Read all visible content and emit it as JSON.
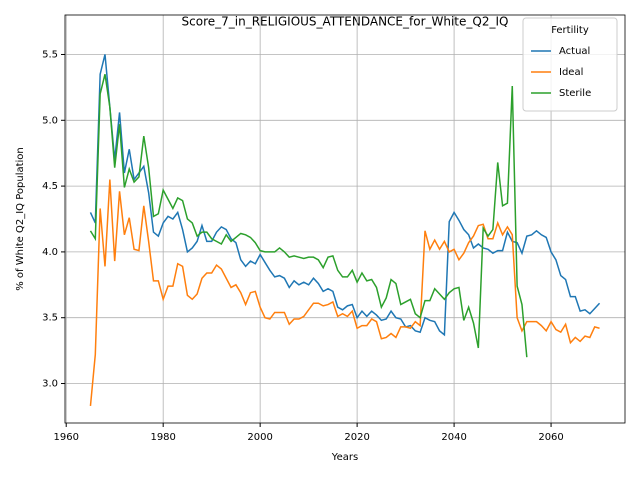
{
  "chart_data": {
    "type": "line",
    "title": "Score_7_in_RELIGIOUS_ATTENDANCE_for_White_Q2_IQ",
    "xlabel": "Years",
    "ylabel": "% of White Q2_IQ Population",
    "legend_title": "Fertility",
    "legend": "upper right",
    "grid": true,
    "x": [
      1965,
      1966,
      1967,
      1968,
      1969,
      1970,
      1971,
      1972,
      1973,
      1974,
      1975,
      1976,
      1977,
      1978,
      1979,
      1980,
      1981,
      1982,
      1983,
      1984,
      1985,
      1986,
      1987,
      1988,
      1989,
      1990,
      1991,
      1992,
      1993,
      1994,
      1995,
      1996,
      1997,
      1998,
      1999,
      2000,
      2001,
      2002,
      2003,
      2004,
      2005,
      2006,
      2007,
      2008,
      2009,
      2010,
      2011,
      2012,
      2013,
      2014,
      2015,
      2016,
      2017,
      2018,
      2019,
      2020,
      2021,
      2022,
      2023,
      2024,
      2025,
      2026,
      2027,
      2028,
      2029,
      2030,
      2031,
      2032,
      2033,
      2034,
      2035,
      2036,
      2037,
      2038,
      2039,
      2040,
      2041,
      2042,
      2043,
      2044,
      2045,
      2046,
      2047,
      2048,
      2049,
      2050,
      2051,
      2052,
      2053,
      2054,
      2055,
      2056,
      2057,
      2058,
      2059,
      2060,
      2061,
      2062,
      2063,
      2064,
      2065,
      2066,
      2067,
      2068,
      2069,
      2070
    ],
    "xlim": [
      1959.75,
      2075.25
    ],
    "xticks": [
      1960,
      1980,
      2000,
      2020,
      2040,
      2060
    ],
    "ylim": [
      2.7,
      5.8
    ],
    "yticks": [
      {
        "value": 3.0,
        "label": "3.0"
      },
      3.5,
      {
        "value": 4.0,
        "label": "4.0"
      },
      4.5,
      {
        "value": 5.0,
        "label": "5.0"
      },
      5.5
    ],
    "series": [
      {
        "name": "Actual",
        "color": "#1f77b4",
        "values": [
          4.3,
          4.22,
          5.35,
          5.5,
          5.1,
          4.7,
          5.06,
          4.6,
          4.78,
          4.55,
          4.6,
          4.65,
          4.45,
          4.15,
          4.12,
          4.22,
          4.27,
          4.25,
          4.3,
          4.17,
          4.0,
          4.03,
          4.08,
          4.2,
          4.08,
          4.08,
          4.15,
          4.19,
          4.17,
          4.1,
          4.07,
          3.94,
          3.89,
          3.93,
          3.91,
          3.98,
          3.92,
          3.86,
          3.81,
          3.82,
          3.8,
          3.73,
          3.78,
          3.75,
          3.77,
          3.75,
          3.8,
          3.76,
          3.7,
          3.72,
          3.7,
          3.58,
          3.56,
          3.59,
          3.6,
          3.5,
          3.55,
          3.51,
          3.55,
          3.52,
          3.48,
          3.49,
          3.55,
          3.5,
          3.49,
          3.43,
          3.44,
          3.4,
          3.39,
          3.5,
          3.48,
          3.47,
          3.4,
          3.37,
          4.23,
          4.3,
          4.24,
          4.17,
          4.13,
          4.03,
          4.06,
          4.03,
          4.02,
          3.99,
          4.01,
          4.01,
          4.15,
          4.08,
          4.07,
          3.99,
          4.12,
          4.13,
          4.16,
          4.13,
          4.11,
          4.0,
          3.94,
          3.82,
          3.79,
          3.66,
          3.66,
          3.55,
          3.56,
          3.53,
          3.57,
          3.61
        ]
      },
      {
        "name": "Ideal",
        "color": "#ff7f0e",
        "values": [
          2.83,
          3.22,
          4.33,
          3.89,
          4.55,
          3.93,
          4.46,
          4.13,
          4.26,
          4.02,
          4.01,
          4.35,
          4.08,
          3.78,
          3.78,
          3.64,
          3.74,
          3.74,
          3.91,
          3.89,
          3.67,
          3.64,
          3.68,
          3.8,
          3.84,
          3.84,
          3.9,
          3.87,
          3.8,
          3.73,
          3.75,
          3.69,
          3.6,
          3.69,
          3.7,
          3.58,
          3.5,
          3.49,
          3.54,
          3.54,
          3.54,
          3.45,
          3.49,
          3.49,
          3.51,
          3.56,
          3.61,
          3.61,
          3.59,
          3.6,
          3.62,
          3.51,
          3.53,
          3.51,
          3.55,
          3.42,
          3.44,
          3.44,
          3.49,
          3.47,
          3.34,
          3.35,
          3.38,
          3.35,
          3.43,
          3.43,
          3.42,
          3.47,
          3.44,
          4.16,
          4.02,
          4.09,
          4.02,
          4.08,
          4.0,
          4.02,
          3.94,
          3.99,
          4.07,
          4.12,
          4.2,
          4.21,
          4.1,
          4.1,
          4.22,
          4.13,
          4.19,
          4.13,
          3.5,
          3.4,
          3.47,
          3.47,
          3.47,
          3.44,
          3.4,
          3.47,
          3.41,
          3.39,
          3.45,
          3.31,
          3.35,
          3.32,
          3.36,
          3.35,
          3.43,
          3.42
        ]
      },
      {
        "name": "Sterile",
        "color": "#2ca02c",
        "values": [
          4.16,
          4.1,
          5.2,
          5.35,
          5.1,
          4.64,
          4.97,
          4.49,
          4.63,
          4.53,
          4.57,
          4.88,
          4.64,
          4.27,
          4.29,
          4.47,
          4.4,
          4.33,
          4.41,
          4.39,
          4.25,
          4.22,
          4.12,
          4.15,
          4.15,
          4.1,
          4.08,
          4.06,
          4.13,
          4.08,
          4.11,
          4.14,
          4.13,
          4.11,
          4.07,
          4.01,
          4.0,
          4.0,
          4.0,
          4.03,
          4.0,
          3.96,
          3.97,
          3.96,
          3.95,
          3.96,
          3.96,
          3.94,
          3.88,
          3.96,
          3.97,
          3.86,
          3.81,
          3.81,
          3.86,
          3.77,
          3.84,
          3.78,
          3.79,
          3.73,
          3.58,
          3.65,
          3.79,
          3.76,
          3.6,
          3.62,
          3.64,
          3.53,
          3.5,
          3.63,
          3.63,
          3.72,
          3.68,
          3.64,
          3.69,
          3.72,
          3.73,
          3.48,
          3.58,
          3.46,
          3.27,
          4.18,
          4.12,
          4.17,
          4.68,
          4.35,
          4.37,
          5.26,
          3.74,
          3.6,
          3.2,
          null,
          null,
          null,
          null,
          null,
          null,
          null,
          null,
          null,
          null,
          null,
          null,
          null,
          null,
          null
        ]
      }
    ]
  }
}
